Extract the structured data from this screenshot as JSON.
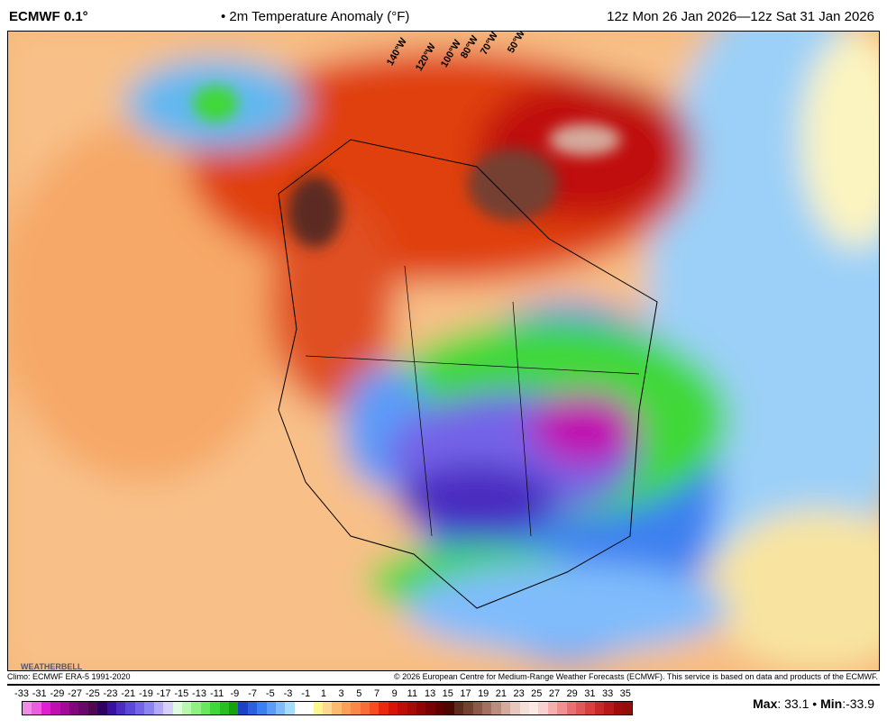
{
  "header": {
    "model": "ECMWF 0.1°",
    "variable": "• 2m Temperature Anomaly (°F)",
    "valid": "12z Mon 26 Jan 2026—12z Sat 31 Jan 2026"
  },
  "map": {
    "longitude_labels": [
      "140°W",
      "120°W",
      "100°W",
      "80°W",
      "70°W",
      "50°W"
    ],
    "logo": "WEATHERBELL"
  },
  "footer": {
    "climo": "Climo: ECMWF ERA-5 1991-2020",
    "copyright": "© 2026 European Centre for Medium-Range Weather Forecasts (ECMWF). This service is based on data and products of the ECMWF."
  },
  "colorbar": {
    "ticks": [
      "-33",
      "-31",
      "-29",
      "-27",
      "-25",
      "-23",
      "-21",
      "-19",
      "-17",
      "-15",
      "-13",
      "-11",
      "-9",
      "-7",
      "-5",
      "-3",
      "-1",
      "1",
      "3",
      "5",
      "7",
      "9",
      "11",
      "13",
      "15",
      "17",
      "19",
      "21",
      "23",
      "25",
      "27",
      "29",
      "31",
      "33",
      "35"
    ],
    "colors": [
      "#f08ce8",
      "#ec5ee0",
      "#e020d0",
      "#c010b0",
      "#a00c98",
      "#80087c",
      "#680868",
      "#500850",
      "#300060",
      "#3a10a0",
      "#4a2cc0",
      "#5c48d8",
      "#7464e8",
      "#8c84f0",
      "#b4aaf8",
      "#d8d0fc",
      "#e0fce0",
      "#b8f8b0",
      "#90f084",
      "#68e85c",
      "#40d838",
      "#28c020",
      "#18a010",
      "#1c40c8",
      "#2860e0",
      "#3c80f0",
      "#5c9cf8",
      "#80bcfc",
      "#a8dcfc",
      "#ffffff",
      "#ffffff",
      "#fcf890",
      "#fcd890",
      "#fcbc70",
      "#fca058",
      "#fc8848",
      "#fc6c38",
      "#f84c20",
      "#e82810",
      "#d81408",
      "#c00c08",
      "#a80806",
      "#900404",
      "#780202",
      "#600000",
      "#4a0800",
      "#5c2c20",
      "#744030",
      "#8c5848",
      "#a47060",
      "#bc8c7c",
      "#d4aa9c",
      "#e8c8bc",
      "#f4e0d8",
      "#fce8e4",
      "#f8d0d0",
      "#f4b0b0",
      "#f09090",
      "#e87070",
      "#e05858",
      "#d84040",
      "#c82828",
      "#b81818",
      "#a00c0c",
      "#901008"
    ],
    "max_label": "Max",
    "max": "33.1",
    "sep": " • ",
    "min_label": "Min",
    "min": "-33.9"
  }
}
